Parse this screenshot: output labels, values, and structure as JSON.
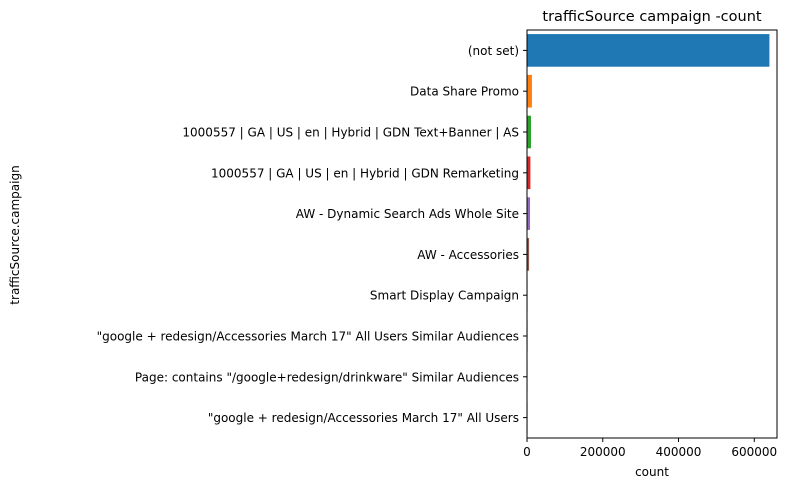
{
  "chart_data": {
    "type": "bar",
    "orientation": "horizontal",
    "title": "trafficSource campaign -count",
    "xlabel": "count",
    "ylabel": "trafficSource.campaign",
    "xlim": [
      0,
      660000
    ],
    "xticks": [
      0,
      200000,
      400000,
      600000
    ],
    "xtick_labels": [
      "0",
      "200000",
      "400000",
      "600000"
    ],
    "grid": false,
    "categories": [
      "(not set)",
      "Data Share Promo",
      "1000557 | GA | US | en | Hybrid | GDN Text+Banner | AS",
      "1000557 | GA | US | en | Hybrid | GDN Remarketing",
      "AW - Dynamic Search Ads Whole Site",
      "AW - Accessories",
      "Smart Display Campaign",
      "\"google + redesign/Accessories March 17\" All Users Similar Audiences",
      "Page: contains \"/google+redesign/drinkware\" Similar Audiences",
      "\"google + redesign/Accessories March 17\" All Users"
    ],
    "values": [
      640000,
      13000,
      10500,
      9000,
      8000,
      5500,
      900,
      600,
      300,
      200
    ],
    "colors": [
      "#1f77b4",
      "#ff7f0e",
      "#2ca02c",
      "#d62728",
      "#9467bd",
      "#8c564b",
      "#e377c2",
      "#7f7f7f",
      "#bcbd22",
      "#17becf"
    ]
  }
}
